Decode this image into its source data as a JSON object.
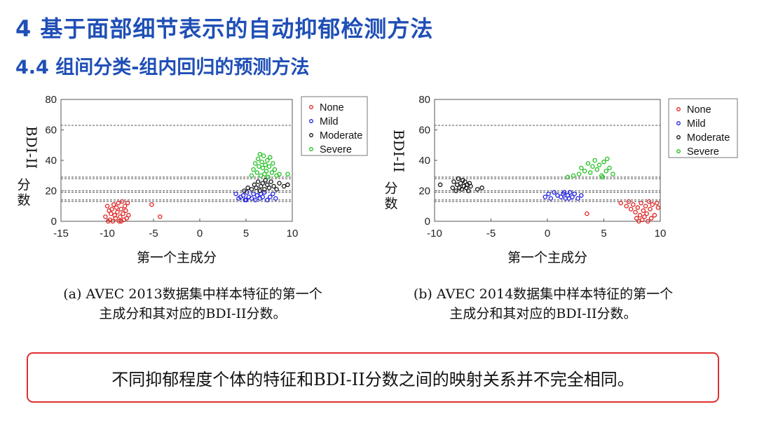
{
  "title": "4 基于面部细节表示的自动抑郁检测方法",
  "subtitle": "4.4 组间分类-组内回归的预测方法",
  "chart_data": [
    {
      "type": "scatter",
      "xlabel": "第一个主成分",
      "ylabel": "BDI-II分数",
      "xlim": [
        -15,
        10
      ],
      "ylim": [
        0,
        80
      ],
      "xticks": [
        -15,
        -10,
        -5,
        0,
        5,
        10
      ],
      "yticks": [
        0,
        20,
        40,
        60,
        80
      ],
      "hlines": [
        13,
        14,
        19,
        20,
        28,
        29,
        63
      ],
      "grid": false,
      "legend_position": "top-right",
      "series": [
        {
          "name": "None",
          "color": "#e02020",
          "points": [
            [
              -10.2,
              3
            ],
            [
              -10.0,
              10
            ],
            [
              -9.8,
              7
            ],
            [
              -9.7,
              1
            ],
            [
              -9.6,
              5
            ],
            [
              -9.5,
              8
            ],
            [
              -9.4,
              0
            ],
            [
              -9.3,
              11
            ],
            [
              -9.2,
              4
            ],
            [
              -9.1,
              2
            ],
            [
              -9.0,
              9
            ],
            [
              -8.9,
              6
            ],
            [
              -8.8,
              12
            ],
            [
              -8.7,
              0
            ],
            [
              -8.6,
              3
            ],
            [
              -8.5,
              8
            ],
            [
              -8.4,
              13
            ],
            [
              -8.3,
              5
            ],
            [
              -8.2,
              1
            ],
            [
              -8.1,
              10
            ],
            [
              -8.0,
              7
            ],
            [
              -7.9,
              2
            ],
            [
              -7.8,
              12
            ],
            [
              -7.7,
              4
            ],
            [
              -9.9,
              0
            ],
            [
              -8.5,
              0
            ],
            [
              -5.2,
              11
            ],
            [
              -4.3,
              3
            ]
          ]
        },
        {
          "name": "Mild",
          "color": "#2020e0",
          "points": [
            [
              3.9,
              18
            ],
            [
              4.2,
              15
            ],
            [
              4.4,
              16
            ],
            [
              4.7,
              17
            ],
            [
              4.9,
              14
            ],
            [
              5.1,
              19
            ],
            [
              5.3,
              16
            ],
            [
              5.6,
              15
            ],
            [
              5.8,
              18
            ],
            [
              6.0,
              14
            ],
            [
              6.2,
              17
            ],
            [
              6.5,
              15
            ],
            [
              6.8,
              16
            ],
            [
              7.0,
              19
            ],
            [
              7.3,
              14
            ],
            [
              7.6,
              16
            ],
            [
              7.9,
              18
            ],
            [
              8.2,
              15
            ],
            [
              5.0,
              14
            ],
            [
              6.6,
              18
            ]
          ]
        },
        {
          "name": "Moderate",
          "color": "#111111",
          "points": [
            [
              4.8,
              20
            ],
            [
              5.2,
              22
            ],
            [
              5.6,
              21
            ],
            [
              5.9,
              24
            ],
            [
              6.1,
              22
            ],
            [
              6.3,
              26
            ],
            [
              6.5,
              20
            ],
            [
              6.6,
              23
            ],
            [
              6.8,
              25
            ],
            [
              7.0,
              21
            ],
            [
              7.1,
              27
            ],
            [
              7.3,
              24
            ],
            [
              7.5,
              22
            ],
            [
              7.7,
              26
            ],
            [
              8.0,
              23
            ],
            [
              8.3,
              21
            ],
            [
              8.6,
              25
            ],
            [
              9.1,
              23
            ],
            [
              9.5,
              24
            ]
          ]
        },
        {
          "name": "Severe",
          "color": "#20c020",
          "points": [
            [
              5.6,
              30
            ],
            [
              5.8,
              34
            ],
            [
              6.0,
              38
            ],
            [
              6.2,
              32
            ],
            [
              6.3,
              41
            ],
            [
              6.4,
              36
            ],
            [
              6.5,
              44
            ],
            [
              6.6,
              30
            ],
            [
              6.7,
              39
            ],
            [
              6.8,
              35
            ],
            [
              6.9,
              43
            ],
            [
              7.0,
              31
            ],
            [
              7.1,
              37
            ],
            [
              7.2,
              33
            ],
            [
              7.3,
              40
            ],
            [
              7.4,
              29
            ],
            [
              7.5,
              36
            ],
            [
              7.6,
              42
            ],
            [
              7.8,
              32
            ],
            [
              7.9,
              38
            ],
            [
              8.1,
              34
            ],
            [
              8.3,
              30
            ],
            [
              8.6,
              31
            ],
            [
              9.5,
              31
            ]
          ]
        }
      ]
    },
    {
      "type": "scatter",
      "xlabel": "第一个主成分",
      "ylabel": "BDI-II分数",
      "xlim": [
        -10,
        10
      ],
      "ylim": [
        0,
        80
      ],
      "xticks": [
        -10,
        -5,
        0,
        5,
        10
      ],
      "yticks": [
        0,
        20,
        40,
        60,
        80
      ],
      "hlines": [
        13,
        14,
        19,
        20,
        28,
        29,
        63
      ],
      "grid": false,
      "legend_position": "top-right",
      "series": [
        {
          "name": "None",
          "color": "#e02020",
          "points": [
            [
              3.5,
              5
            ],
            [
              6.5,
              12
            ],
            [
              7.0,
              10
            ],
            [
              7.2,
              13
            ],
            [
              7.4,
              8
            ],
            [
              7.6,
              11
            ],
            [
              7.8,
              6
            ],
            [
              7.9,
              2
            ],
            [
              8.0,
              9
            ],
            [
              8.1,
              0
            ],
            [
              8.2,
              4
            ],
            [
              8.3,
              12
            ],
            [
              8.4,
              1
            ],
            [
              8.5,
              7
            ],
            [
              8.6,
              3
            ],
            [
              8.7,
              10
            ],
            [
              8.8,
              5
            ],
            [
              8.9,
              0
            ],
            [
              9.0,
              13
            ],
            [
              9.1,
              8
            ],
            [
              9.2,
              2
            ],
            [
              9.3,
              11
            ],
            [
              9.5,
              4
            ],
            [
              9.7,
              12
            ],
            [
              9.8,
              9
            ]
          ]
        },
        {
          "name": "Mild",
          "color": "#2020e0",
          "points": [
            [
              -0.2,
              16
            ],
            [
              0.1,
              18
            ],
            [
              0.3,
              15
            ],
            [
              0.6,
              19
            ],
            [
              0.9,
              17
            ],
            [
              1.2,
              16
            ],
            [
              1.4,
              18
            ],
            [
              1.6,
              15
            ],
            [
              1.8,
              17
            ],
            [
              2.0,
              19
            ],
            [
              2.2,
              16
            ],
            [
              2.4,
              18
            ],
            [
              2.7,
              15
            ],
            [
              3.0,
              17
            ],
            [
              1.5,
              19
            ],
            [
              1.9,
              15
            ]
          ]
        },
        {
          "name": "Moderate",
          "color": "#111111",
          "points": [
            [
              -9.5,
              24
            ],
            [
              -8.4,
              22
            ],
            [
              -8.3,
              26
            ],
            [
              -8.1,
              20
            ],
            [
              -8.0,
              24
            ],
            [
              -7.9,
              28
            ],
            [
              -7.8,
              22
            ],
            [
              -7.7,
              25
            ],
            [
              -7.6,
              21
            ],
            [
              -7.5,
              27
            ],
            [
              -7.4,
              23
            ],
            [
              -7.3,
              26
            ],
            [
              -7.2,
              22
            ],
            [
              -7.1,
              24
            ],
            [
              -7.0,
              20
            ],
            [
              -6.9,
              25
            ],
            [
              -6.8,
              23
            ],
            [
              -6.2,
              21
            ],
            [
              -5.8,
              22
            ]
          ]
        },
        {
          "name": "Severe",
          "color": "#20c020",
          "points": [
            [
              1.8,
              29
            ],
            [
              2.3,
              30
            ],
            [
              2.8,
              31
            ],
            [
              3.0,
              35
            ],
            [
              3.3,
              33
            ],
            [
              3.6,
              38
            ],
            [
              3.8,
              32
            ],
            [
              4.0,
              36
            ],
            [
              4.2,
              40
            ],
            [
              4.4,
              34
            ],
            [
              4.6,
              37
            ],
            [
              4.8,
              30
            ],
            [
              5.0,
              39
            ],
            [
              5.2,
              33
            ],
            [
              5.3,
              41
            ],
            [
              5.5,
              35
            ],
            [
              5.8,
              31
            ],
            [
              4.9,
              29
            ]
          ]
        }
      ]
    }
  ],
  "captions": {
    "a_line1": "(a) AVEC 2013数据集中样本特征的第一个",
    "a_line2": "主成分和其对应的BDI-II分数。",
    "b_line1": "(b) AVEC 2014数据集中样本特征的第一个",
    "b_line2": "主成分和其对应的BDI-II分数。"
  },
  "conclusion": "不同抑郁程度个体的特征和BDI-II分数之间的映射关系并不完全相同。"
}
